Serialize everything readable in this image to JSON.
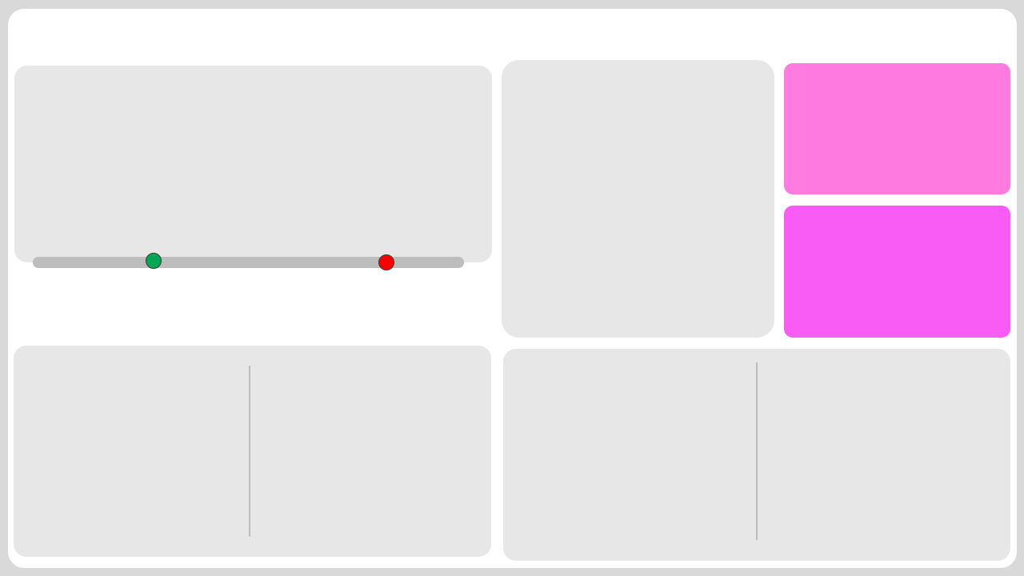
{
  "colors": {
    "background": "#d9d9d9",
    "frame": "#ffffff",
    "panel": "#e7e7e7",
    "slider_track": "#bdbdbd",
    "divider": "#bcbcbc"
  },
  "range_slider": {
    "start_thumb": {
      "color": "#00a651",
      "fraction": 0.28
    },
    "end_thumb": {
      "color": "#ff0000",
      "fraction": 0.82
    }
  },
  "swatches": [
    {
      "name": "pink",
      "color": "#ff7bdf"
    },
    {
      "name": "magenta",
      "color": "#f95bf5"
    }
  ]
}
